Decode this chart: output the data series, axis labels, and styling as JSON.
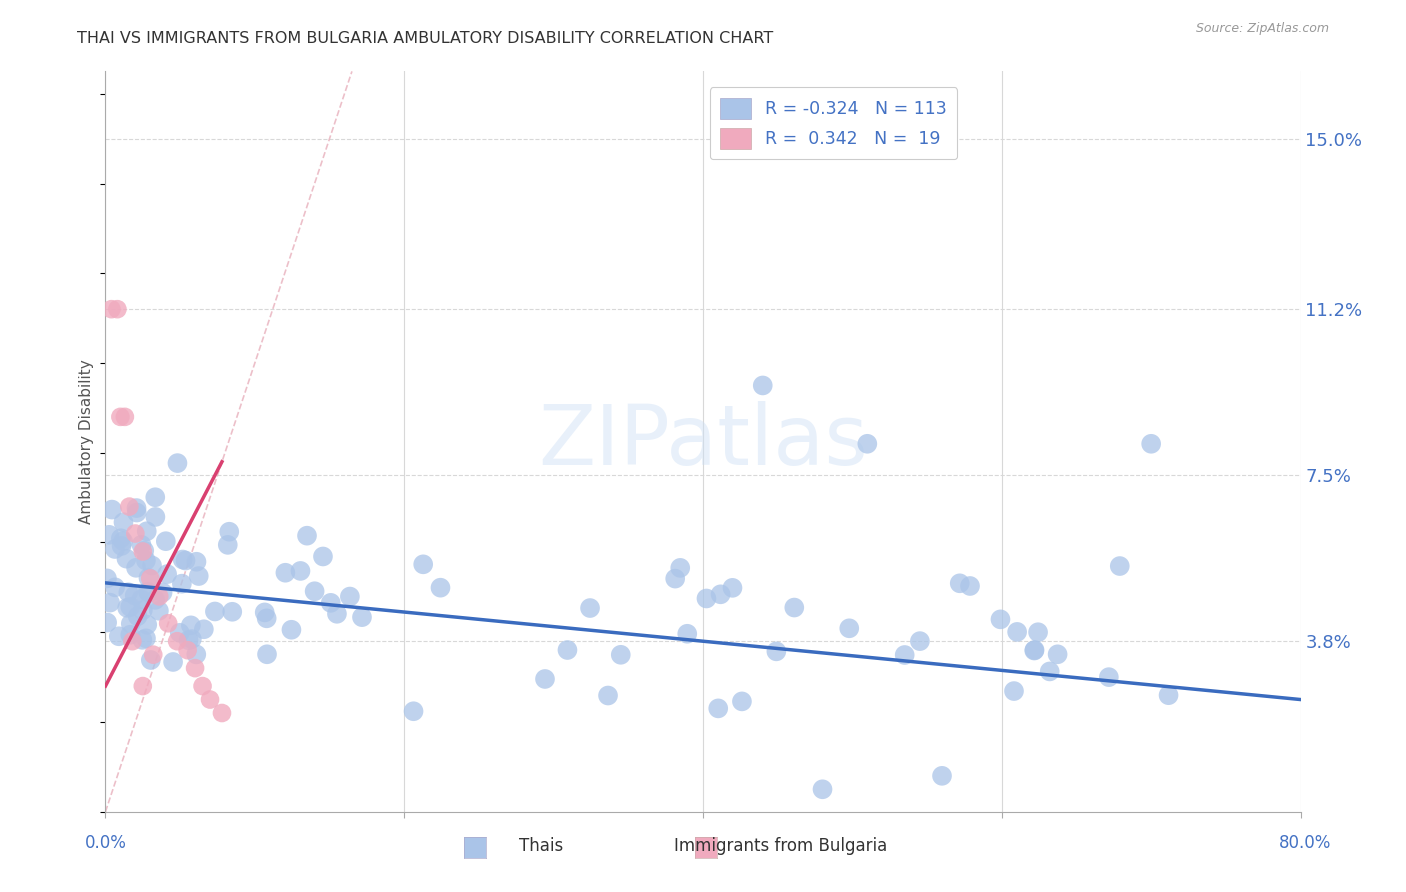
{
  "title": "THAI VS IMMIGRANTS FROM BULGARIA AMBULATORY DISABILITY CORRELATION CHART",
  "source": "Source: ZipAtlas.com",
  "ylabel": "Ambulatory Disability",
  "xlim": [
    0.0,
    0.8
  ],
  "ylim": [
    0.0,
    0.165
  ],
  "watermark": "ZIPatlas",
  "color_thai": "#aac4e8",
  "color_bulgaria": "#f0aabe",
  "color_thai_line": "#3a6bbf",
  "color_bulgaria_line": "#d94070",
  "color_diagonal": "#e8b0bc",
  "axis_label_color": "#4472c4",
  "grid_color": "#d8d8d8",
  "background_color": "#ffffff",
  "title_color": "#333333",
  "ytick_vals": [
    0.038,
    0.075,
    0.112,
    0.15
  ],
  "ytick_labels": [
    "3.8%",
    "7.5%",
    "11.2%",
    "15.0%"
  ],
  "legend_text1": "R = -0.324   N = 113",
  "legend_text2": "R =  0.342   N =  19"
}
